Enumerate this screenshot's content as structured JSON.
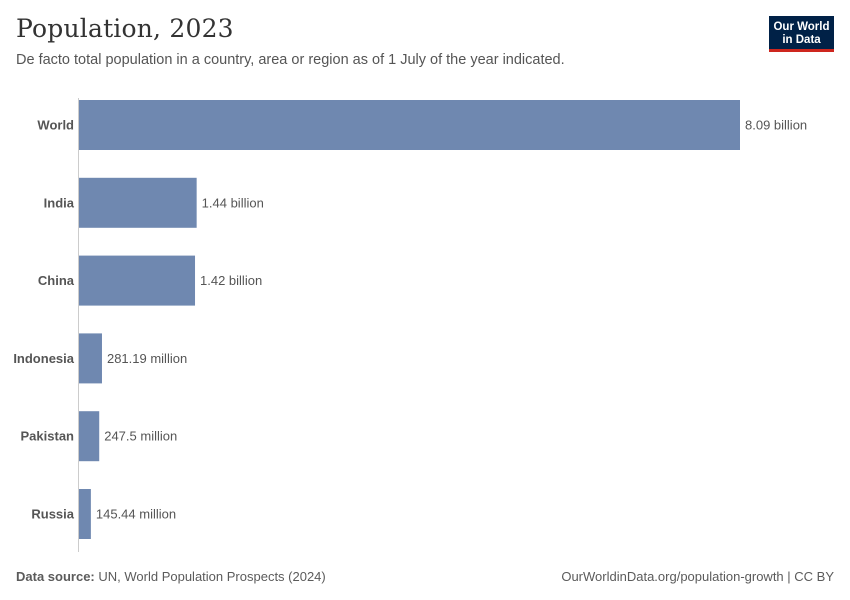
{
  "header": {
    "title": "Population, 2023",
    "subtitle": "De facto total population in a country, area or region as of 1 July of the year indicated."
  },
  "logo": {
    "line1": "Our World",
    "line2": "in Data",
    "bg_color": "#002147",
    "accent_color": "#ce261e"
  },
  "chart_data": {
    "type": "bar",
    "orientation": "horizontal",
    "title": "Population, 2023",
    "categories": [
      "World",
      "India",
      "China",
      "Indonesia",
      "Pakistan",
      "Russia"
    ],
    "values": [
      8090000000,
      1440000000,
      1420000000,
      281190000,
      247500000,
      145440000
    ],
    "value_labels": [
      "8.09 billion",
      "1.44 billion",
      "1.42 billion",
      "281.19 million",
      "247.5 million",
      "145.44 million"
    ],
    "bar_color": "#6f88b0",
    "xlim": [
      0,
      8090000000
    ],
    "grid": false,
    "legend": "none"
  },
  "footer": {
    "source_label": "Data source:",
    "source_text": "UN, World Population Prospects (2024)",
    "credit": "OurWorldinData.org/population-growth | CC BY"
  }
}
